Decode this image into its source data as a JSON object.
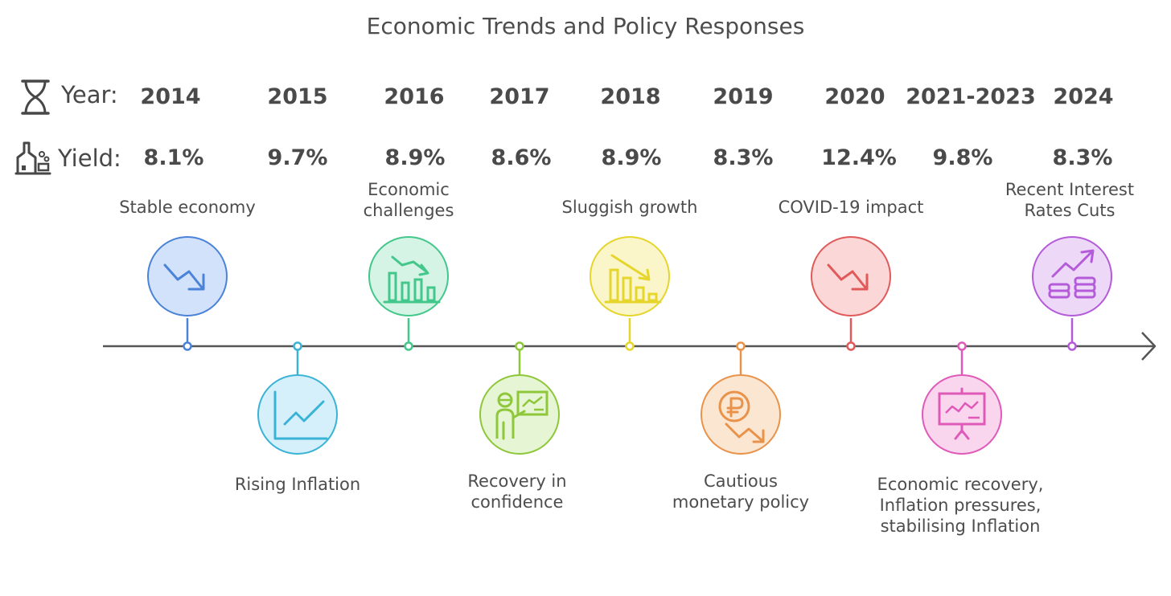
{
  "title": "Economic Trends and Policy Responses",
  "year_label": "Year:",
  "yield_label": "Yield:",
  "icons": {
    "year": "hourglass-icon",
    "yield": "factory-icon"
  },
  "events": [
    {
      "year": "2014",
      "yield": "8.1%",
      "label": "Stable economy",
      "color": "#4a83d8",
      "fill": "#d3e2fb",
      "icon": "trend-down-icon"
    },
    {
      "year": "2015",
      "yield": "9.7%",
      "label": "Rising Inflation",
      "color": "#3ab3d6",
      "fill": "#d5f0fa",
      "icon": "line-chart-icon"
    },
    {
      "year": "2016",
      "yield": "8.9%",
      "label": "Economic challenges",
      "color": "#43c78a",
      "fill": "#d6f4e6",
      "icon": "declining-bars-icon"
    },
    {
      "year": "2017",
      "yield": "8.6%",
      "label": "Recovery in confidence",
      "color": "#8ec73a",
      "fill": "#e6f5d3",
      "icon": "presenter-icon"
    },
    {
      "year": "2018",
      "yield": "8.9%",
      "label": "Sluggish growth",
      "color": "#e5d52c",
      "fill": "#fbf6c9",
      "icon": "shrinking-bars-icon"
    },
    {
      "year": "2019",
      "yield": "8.3%",
      "label": "Cautious monetary policy",
      "color": "#e9924a",
      "fill": "#fbe6d2",
      "icon": "currency-decline-icon"
    },
    {
      "year": "2020",
      "yield": "12.4%",
      "label": "COVID-19 impact",
      "color": "#e05a5a",
      "fill": "#fbd7d7",
      "icon": "trend-down-icon"
    },
    {
      "year": "2021-2023",
      "yield": "9.8%",
      "label": "Economic recovery, Inflation pressures, stabilising Inflation",
      "color": "#df5ab8",
      "fill": "#f9d6ee",
      "icon": "chart-board-icon"
    },
    {
      "year": "2024",
      "yield": "8.3%",
      "label": "Recent Interest Rates Cuts",
      "color": "#b45bd9",
      "fill": "#eed8f8",
      "icon": "coins-growth-icon"
    }
  ]
}
